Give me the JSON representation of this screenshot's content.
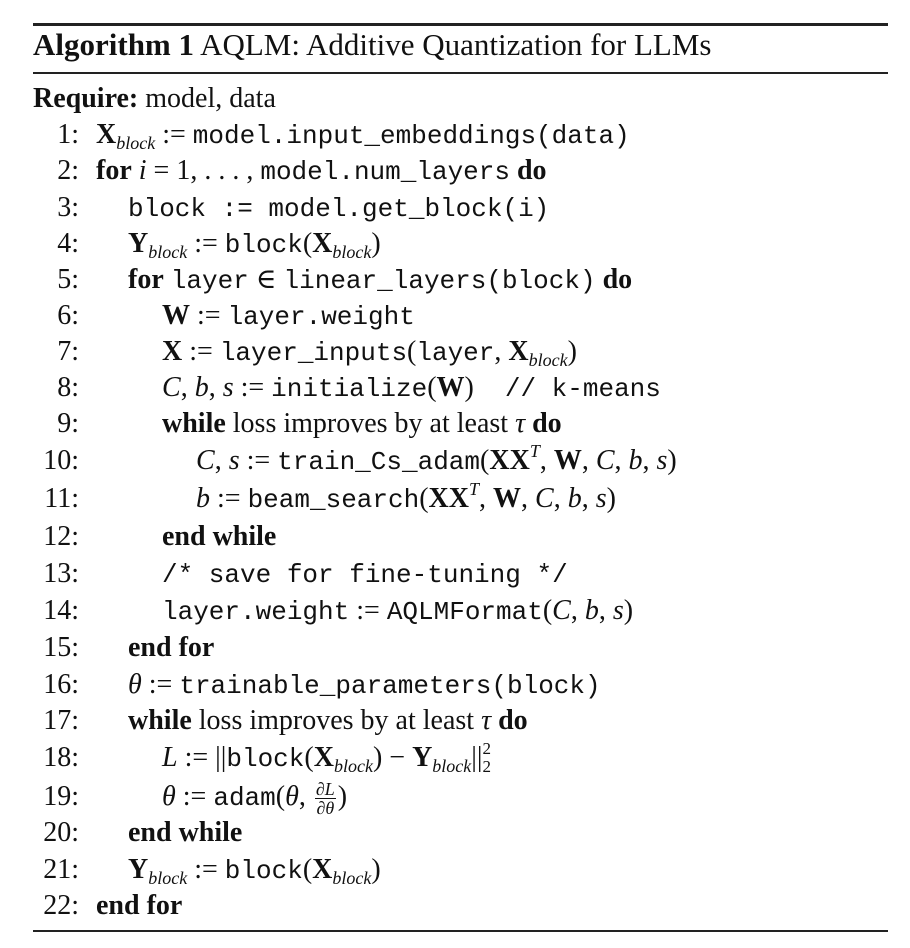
{
  "title": {
    "label": "Algorithm 1",
    "text": "AQLM: Additive Quantization for LLMs"
  },
  "require": {
    "label": "Require:",
    "text": "model, data"
  },
  "lines": [
    {
      "n": "1:"
    },
    {
      "n": "2:"
    },
    {
      "n": "3:"
    },
    {
      "n": "4:"
    },
    {
      "n": "5:"
    },
    {
      "n": "6:"
    },
    {
      "n": "7:"
    },
    {
      "n": "8:"
    },
    {
      "n": "9:"
    },
    {
      "n": "10:"
    },
    {
      "n": "11:"
    },
    {
      "n": "12:"
    },
    {
      "n": "13:"
    },
    {
      "n": "14:"
    },
    {
      "n": "15:"
    },
    {
      "n": "16:"
    },
    {
      "n": "17:"
    },
    {
      "n": "18:"
    },
    {
      "n": "19:"
    },
    {
      "n": "20:"
    },
    {
      "n": "21:"
    },
    {
      "n": "22:"
    }
  ],
  "kw": {
    "for": "for",
    "do": "do",
    "while": "while",
    "end_while": "end while",
    "end_for": "end for"
  },
  "sym": {
    "X": "X",
    "Y": "Y",
    "W": "W",
    "block_sub": "block",
    "T": "T",
    "assign": ":=",
    "in": "∈",
    "i": "i",
    "C": "C",
    "b": "b",
    "s": "s",
    "tau": "τ",
    "theta": "θ",
    "L": "L",
    "dL": "∂L",
    "dtheta": "∂θ",
    "two": "2"
  },
  "code": {
    "l1": "model.input_embeddings(data)",
    "l2_start": "= 1, . . . ,",
    "l2_mono": "model.num_layers",
    "l3": "block := model.get_block(i)",
    "block": "block",
    "layer": "layer",
    "linear_layers": "linear_layers(block)",
    "layer_weight": "layer.weight",
    "layer_inputs": "layer_inputs",
    "layer_arg": "layer",
    "initialize": "initialize",
    "comment": "// k-means",
    "loss_text": "loss improves by at least",
    "train": "train_Cs_adam",
    "beam": "beam_search",
    "save_comment": "/* save for fine-tuning */",
    "aqlm": "AQLMFormat",
    "trainable": "trainable_parameters(block)",
    "adam": "adam"
  }
}
